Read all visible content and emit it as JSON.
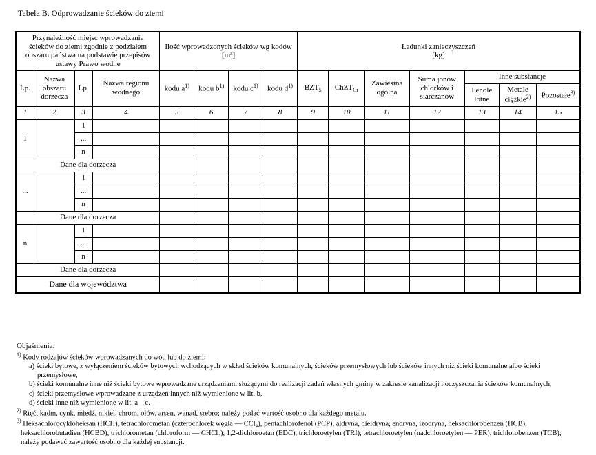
{
  "title": "Tabela B. Odprowadzanie ścieków do ziemi",
  "hdr": {
    "group1": "Przynależność miejsc wprowadzania ścieków do ziemi zgodnie z podziałem obszaru państwa na podstawie przepisów ustawy Prawo wodne",
    "group2": "Ilość wprowadzonych ścieków wg kodów",
    "group2_unit": "[m³]",
    "group3": "Ładunki zanieczyszczeń",
    "group3_unit": "[kg]",
    "lp": "Lp.",
    "nazwa_obszaru": "Nazwa obszaru dorzecza",
    "lp2": "Lp.",
    "nazwa_regionu": "Nazwa regionu wodnego",
    "kodu_a": "kodu a",
    "kodu_b": "kodu b",
    "kodu_c": "kodu c",
    "kodu_d": "kodu d",
    "bzt5": "BZT",
    "bzt5_sub": "5",
    "chzt": "ChZT",
    "chzt_sub": "Cr",
    "zawiesina": "Zawiesina ogólna",
    "suma_jonow": "Suma jonów chlorków i siarczanów",
    "inne": "Inne substancje",
    "fenole": "Fenole lotne",
    "metale": "Metale ciężkie",
    "pozostale": "Pozostałe",
    "sup1": "1)",
    "sup2": "2)",
    "sup3": "3)"
  },
  "colnums": [
    "1",
    "2",
    "3",
    "4",
    "5",
    "6",
    "7",
    "8",
    "9",
    "10",
    "11",
    "12",
    "13",
    "14",
    "15"
  ],
  "rows": {
    "stub_1": "1",
    "stub_dots": "...",
    "stub_n": "n",
    "sub_1": "1",
    "sub_dots": "...",
    "sub_n": "n",
    "dane_dorzecza": "Dane dla dorzecza",
    "dane_woj": "Dane dla województwa"
  },
  "explain": {
    "title": "Objaśnienia:",
    "n1": "1) Kody rodzajów ścieków wprowadzanych do wód lub do ziemi:",
    "n1a": "a) ścieki bytowe, z wyłączeniem ścieków bytowych wchodzących w skład ścieków komunalnych, ścieków przemysłowych lub ścieków innych niż ścieki komunalne albo ścieki przemysłowe,",
    "n1b": "b) ścieki komunalne inne niż ścieki bytowe wprowadzane urządzeniami służącymi do realizacji zadań własnych gminy w zakresie kanalizacji i oczyszczania ścieków komunalnych,",
    "n1c": "c) ścieki przemysłowe wprowadzane z urządzeń innych niż wymienione w lit. b,",
    "n1d": "d) ścieki inne niż wymienione w lit. a—c.",
    "n2": "2) Rtęć, kadm, cynk, miedź, nikiel, chrom, ołów, arsen, wanad, srebro; należy podać wartość osobno dla każdego metalu.",
    "n3": "3) Heksachlorocykloheksan (HCH), tetrachlorometan (czterochlorek węgla — CCl₄), pentachlorofenol (PCP), aldryna, dieldryna, endryna, izodryna, heksachlorobenzen (HCB), heksachlorobutadien (HCBD), trichlorometan (chloroform — CHCl₃), 1,2-dichloroetan (EDC), trichloroetylen (TRI), tetrachloroetylen (nadchloroetylen — PER), trichlorobenzen (TCB); należy podawać zawartość osobno dla każdej substancji."
  }
}
